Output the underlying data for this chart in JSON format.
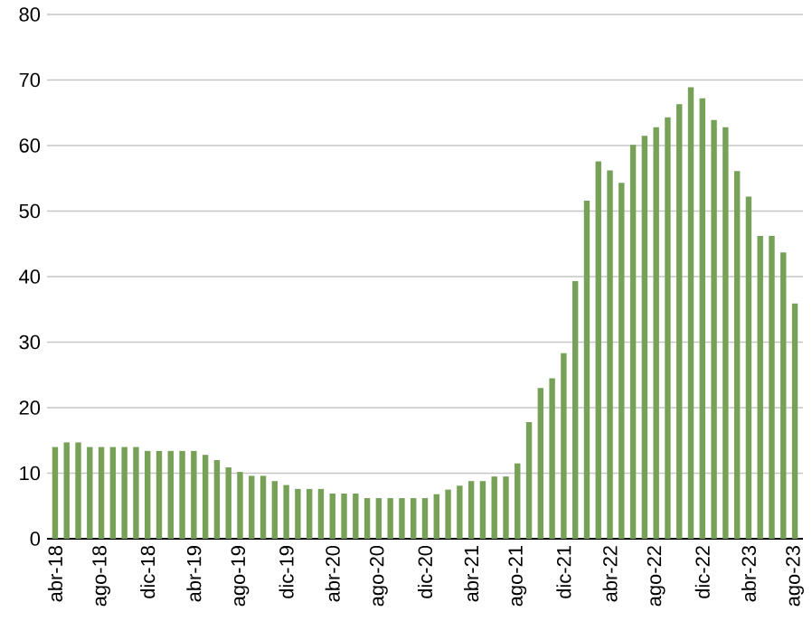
{
  "chart_data": {
    "type": "bar",
    "color": "#76a157",
    "categories": [
      "abr-18",
      null,
      null,
      null,
      "ago-18",
      null,
      null,
      null,
      "dic-18",
      null,
      null,
      null,
      "abr-19",
      null,
      null,
      null,
      "ago-19",
      null,
      null,
      null,
      "dic-19",
      null,
      null,
      null,
      "abr-20",
      null,
      null,
      null,
      "ago-20",
      null,
      null,
      null,
      "dic-20",
      null,
      null,
      null,
      "abr-21",
      null,
      null,
      null,
      "ago-21",
      null,
      null,
      null,
      "dic-21",
      null,
      null,
      null,
      "abr-22",
      null,
      null,
      null,
      "ago-22",
      null,
      null,
      null,
      "dic-22",
      null,
      null,
      null,
      "abr-23",
      null,
      null,
      null,
      "ago-23"
    ],
    "values": [
      14,
      14.7,
      14.7,
      14,
      14,
      14,
      14,
      14,
      13.4,
      13.4,
      13.4,
      13.4,
      13.4,
      12.8,
      12,
      10.9,
      10.2,
      9.6,
      9.6,
      8.8,
      8.2,
      7.6,
      7.6,
      7.6,
      6.9,
      6.9,
      6.9,
      6.2,
      6.2,
      6.2,
      6.2,
      6.2,
      6.2,
      6.8,
      7.5,
      8.1,
      8.8,
      8.8,
      9.5,
      9.5,
      11.5,
      17.8,
      23,
      24.5,
      28.3,
      39.3,
      51.6,
      57.6,
      56.2,
      54.3,
      60.1,
      61.5,
      62.8,
      64.3,
      66.3,
      68.9,
      67.2,
      63.9,
      62.8,
      56.1,
      52.2,
      46.2,
      46.2,
      43.7,
      35.9
    ],
    "ylim": [
      0,
      80
    ],
    "yticks": [
      0,
      10,
      20,
      30,
      40,
      50,
      60,
      70,
      80
    ],
    "grid": "y"
  }
}
